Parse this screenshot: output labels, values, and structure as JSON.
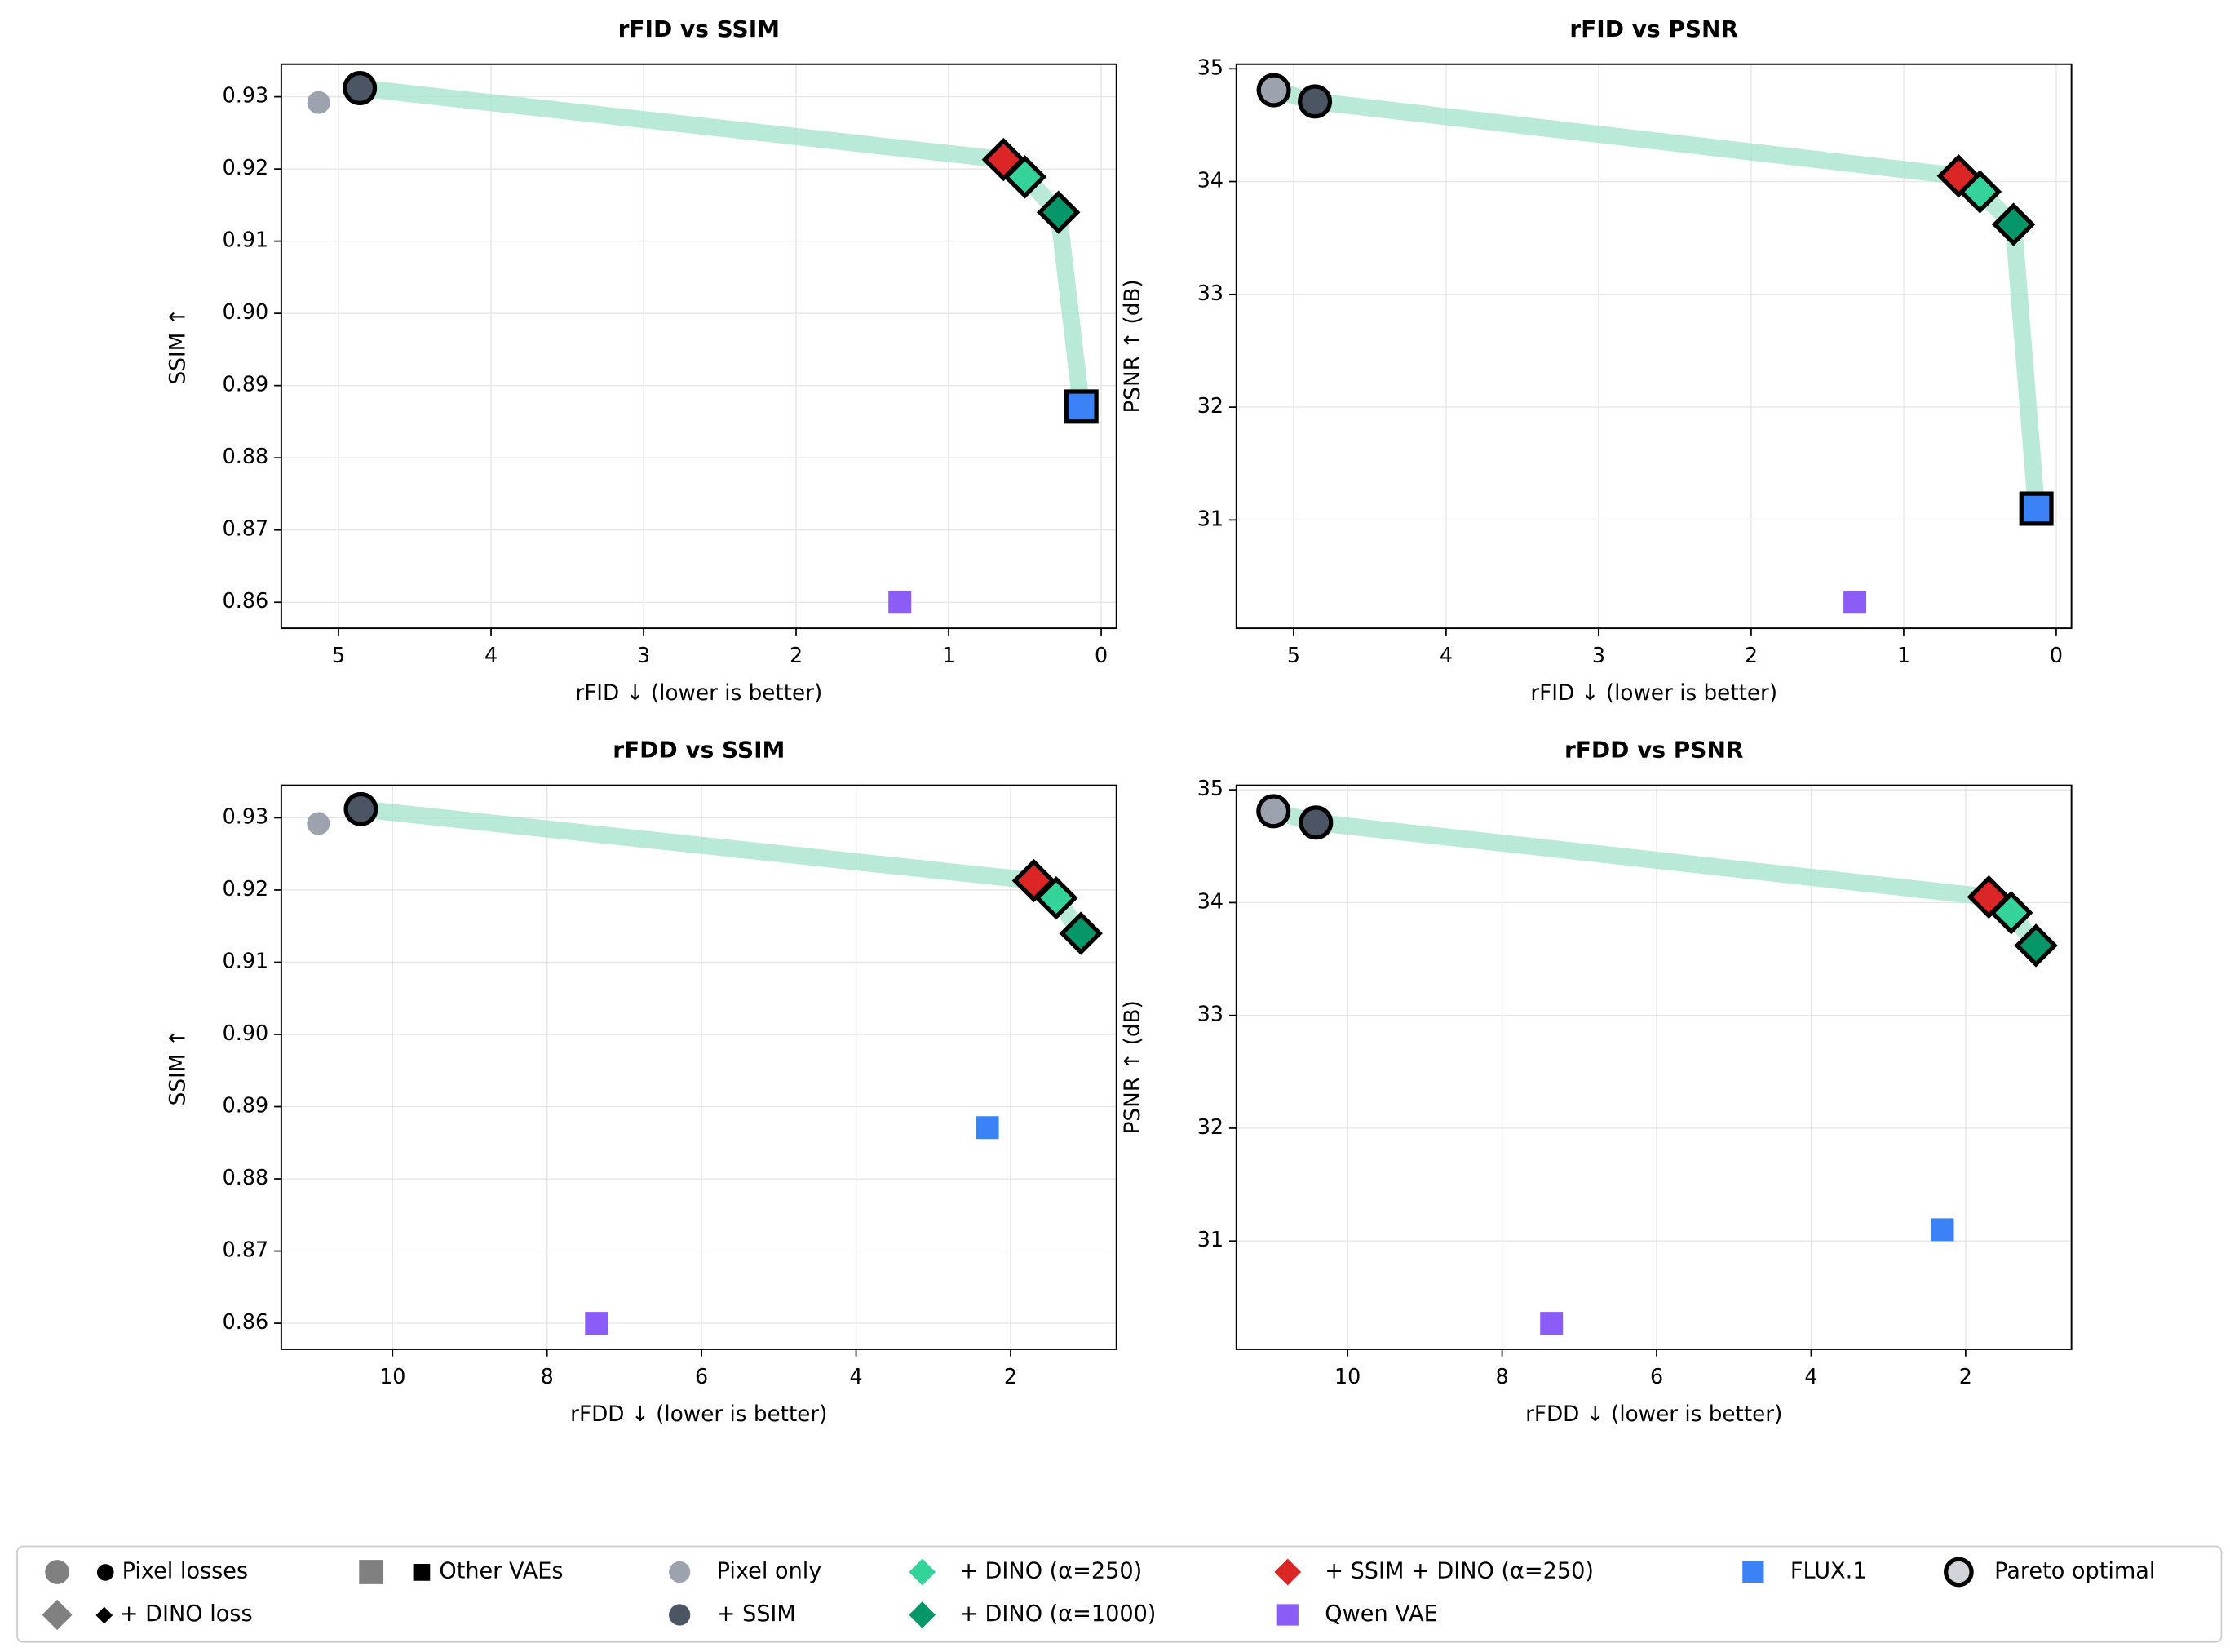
{
  "chart_data": [
    {
      "type": "scatter",
      "title": "rFID vs SSIM",
      "xlabel": "rFID ↓ (lower is better)",
      "ylabel": "SSIM ↑",
      "xlim": [
        5.375,
        -0.1
      ],
      "ylim": [
        0.8564,
        0.9345
      ],
      "xticks": [
        5,
        4,
        3,
        2,
        1,
        0
      ],
      "yticks": [
        {
          "value": 0.86,
          "label": "0.86"
        },
        {
          "value": 0.87,
          "label": "0.87"
        },
        {
          "value": 0.88,
          "label": "0.88"
        },
        {
          "value": 0.89,
          "label": "0.89"
        },
        {
          "value": 0.9,
          "label": "0.90"
        },
        {
          "value": 0.91,
          "label": "0.91"
        },
        {
          "value": 0.92,
          "label": "0.92"
        },
        {
          "value": 0.93,
          "label": "0.93"
        }
      ],
      "grid": true,
      "pareto_frontier": [
        1,
        4,
        2,
        3,
        6
      ],
      "frontier_color": "#a7e3cd",
      "series": [
        {
          "name": "Pixel only",
          "color": "#9ca3af",
          "marker": "circle",
          "x": [
            5.13
          ],
          "y": [
            0.9292
          ]
        },
        {
          "name": "+ SSIM",
          "color": "#4b5563",
          "marker": "circle",
          "x": [
            4.86
          ],
          "y": [
            0.9312
          ]
        },
        {
          "name": "+ DINO (α=250)",
          "color": "#34d399",
          "marker": "diamond",
          "x": [
            0.5
          ],
          "y": [
            0.9189
          ]
        },
        {
          "name": "+ DINO (α=1000)",
          "color": "#059669",
          "marker": "diamond",
          "x": [
            0.28
          ],
          "y": [
            0.914
          ]
        },
        {
          "name": "+ SSIM + DINO (α=250)",
          "color": "#dc2626",
          "marker": "diamond",
          "x": [
            0.64
          ],
          "y": [
            0.9213
          ]
        },
        {
          "name": "Qwen VAE",
          "color": "#8b5cf6",
          "marker": "square",
          "x": [
            1.32
          ],
          "y": [
            0.86
          ]
        },
        {
          "name": "FLUX.1",
          "color": "#3b82f6",
          "marker": "square",
          "x": [
            0.13
          ],
          "y": [
            0.8871
          ]
        }
      ]
    },
    {
      "type": "scatter",
      "title": "rFID vs PSNR",
      "xlabel": "rFID ↓ (lower is better)",
      "ylabel": "PSNR ↑ (dB)",
      "xlim": [
        5.375,
        -0.1
      ],
      "ylim": [
        30.04,
        35.04
      ],
      "xticks": [
        5,
        4,
        3,
        2,
        1,
        0
      ],
      "yticks": [
        31,
        32,
        33,
        34,
        35
      ],
      "grid": true,
      "pareto_frontier": [
        0,
        1,
        4,
        2,
        3,
        6
      ],
      "frontier_color": "#a7e3cd",
      "series": [
        {
          "name": "Pixel only",
          "color": "#9ca3af",
          "marker": "circle",
          "x": [
            5.13
          ],
          "y": [
            34.81
          ]
        },
        {
          "name": "+ SSIM",
          "color": "#4b5563",
          "marker": "circle",
          "x": [
            4.86
          ],
          "y": [
            34.71
          ]
        },
        {
          "name": "+ DINO (α=250)",
          "color": "#34d399",
          "marker": "diamond",
          "x": [
            0.5
          ],
          "y": [
            33.91
          ]
        },
        {
          "name": "+ DINO (α=1000)",
          "color": "#059669",
          "marker": "diamond",
          "x": [
            0.28
          ],
          "y": [
            33.62
          ]
        },
        {
          "name": "+ SSIM + DINO (α=250)",
          "color": "#dc2626",
          "marker": "diamond",
          "x": [
            0.64
          ],
          "y": [
            34.05
          ]
        },
        {
          "name": "Qwen VAE",
          "color": "#8b5cf6",
          "marker": "square",
          "x": [
            1.32
          ],
          "y": [
            30.27
          ]
        },
        {
          "name": "FLUX.1",
          "color": "#3b82f6",
          "marker": "square",
          "x": [
            0.13
          ],
          "y": [
            31.1
          ]
        }
      ]
    },
    {
      "type": "scatter",
      "title": "rFDD vs SSIM",
      "xlabel": "rFDD ↓ (lower is better)",
      "ylabel": "SSIM ↑",
      "xlim": [
        11.44,
        0.63
      ],
      "ylim": [
        0.8564,
        0.9345
      ],
      "xticks": [
        10,
        8,
        6,
        4,
        2
      ],
      "yticks": [
        {
          "value": 0.86,
          "label": "0.86"
        },
        {
          "value": 0.87,
          "label": "0.87"
        },
        {
          "value": 0.88,
          "label": "0.88"
        },
        {
          "value": 0.89,
          "label": "0.89"
        },
        {
          "value": 0.9,
          "label": "0.90"
        },
        {
          "value": 0.91,
          "label": "0.91"
        },
        {
          "value": 0.92,
          "label": "0.92"
        },
        {
          "value": 0.93,
          "label": "0.93"
        }
      ],
      "grid": true,
      "pareto_frontier": [
        1,
        4,
        2,
        3
      ],
      "frontier_color": "#a7e3cd",
      "series": [
        {
          "name": "Pixel only",
          "color": "#9ca3af",
          "marker": "circle",
          "x": [
            10.96
          ],
          "y": [
            0.9292
          ]
        },
        {
          "name": "+ SSIM",
          "color": "#4b5563",
          "marker": "circle",
          "x": [
            10.41
          ],
          "y": [
            0.9312
          ]
        },
        {
          "name": "+ DINO (α=250)",
          "color": "#34d399",
          "marker": "diamond",
          "x": [
            1.41
          ],
          "y": [
            0.9189
          ]
        },
        {
          "name": "+ DINO (α=1000)",
          "color": "#059669",
          "marker": "diamond",
          "x": [
            1.09
          ],
          "y": [
            0.914
          ]
        },
        {
          "name": "+ SSIM + DINO (α=250)",
          "color": "#dc2626",
          "marker": "diamond",
          "x": [
            1.7
          ],
          "y": [
            0.9213
          ]
        },
        {
          "name": "Qwen VAE",
          "color": "#8b5cf6",
          "marker": "square",
          "x": [
            7.36
          ],
          "y": [
            0.86
          ]
        },
        {
          "name": "FLUX.1",
          "color": "#3b82f6",
          "marker": "square",
          "x": [
            2.3
          ],
          "y": [
            0.8871
          ]
        }
      ]
    },
    {
      "type": "scatter",
      "title": "rFDD vs PSNR",
      "xlabel": "rFDD ↓ (lower is better)",
      "ylabel": "PSNR ↑ (dB)",
      "xlim": [
        11.44,
        0.63
      ],
      "ylim": [
        30.04,
        35.04
      ],
      "xticks": [
        10,
        8,
        6,
        4,
        2
      ],
      "yticks": [
        31,
        32,
        33,
        34,
        35
      ],
      "grid": true,
      "pareto_frontier": [
        0,
        1,
        4,
        2,
        3
      ],
      "frontier_color": "#a7e3cd",
      "series": [
        {
          "name": "Pixel only",
          "color": "#9ca3af",
          "marker": "circle",
          "x": [
            10.96
          ],
          "y": [
            34.81
          ]
        },
        {
          "name": "+ SSIM",
          "color": "#4b5563",
          "marker": "circle",
          "x": [
            10.41
          ],
          "y": [
            34.71
          ]
        },
        {
          "name": "+ DINO (α=250)",
          "color": "#34d399",
          "marker": "diamond",
          "x": [
            1.41
          ],
          "y": [
            33.91
          ]
        },
        {
          "name": "+ DINO (α=1000)",
          "color": "#059669",
          "marker": "diamond",
          "x": [
            1.09
          ],
          "y": [
            33.62
          ]
        },
        {
          "name": "+ SSIM + DINO (α=250)",
          "color": "#dc2626",
          "marker": "diamond",
          "x": [
            1.7
          ],
          "y": [
            34.05
          ]
        },
        {
          "name": "Qwen VAE",
          "color": "#8b5cf6",
          "marker": "square",
          "x": [
            7.36
          ],
          "y": [
            30.27
          ]
        },
        {
          "name": "FLUX.1",
          "color": "#3b82f6",
          "marker": "square",
          "x": [
            2.3
          ],
          "y": [
            31.1
          ]
        }
      ]
    }
  ],
  "legend": {
    "marker_entries": [
      {
        "label": "● Pixel losses",
        "marker": "circle"
      },
      {
        "label": "◆ + DINO loss",
        "marker": "diamond"
      },
      {
        "label": "■ Other VAEs",
        "marker": "square"
      }
    ],
    "handle_color": "#808080",
    "pareto_label": "Pareto optimal"
  }
}
